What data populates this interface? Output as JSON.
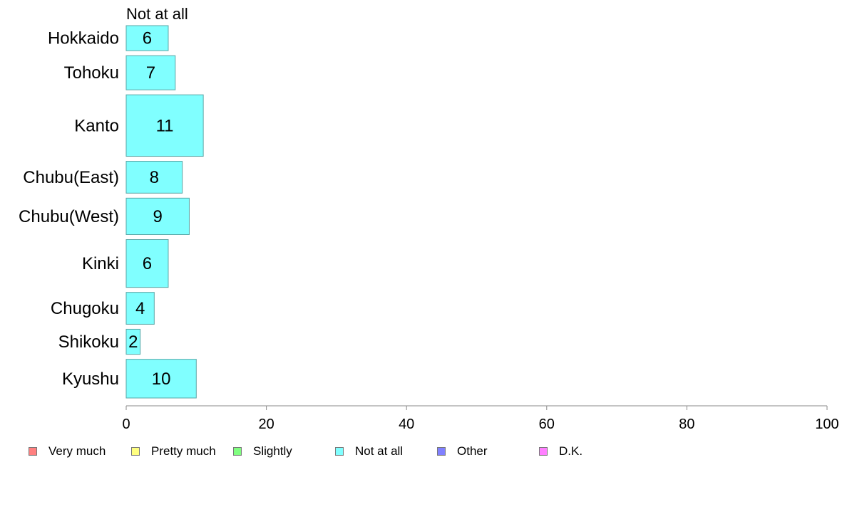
{
  "chart_data": {
    "type": "bar",
    "orientation": "horizontal",
    "panel_label": "Not at all",
    "categories": [
      "Hokkaido",
      "Tohoku",
      "Kanto",
      "Chubu(East)",
      "Chubu(West)",
      "Kinki",
      "Chugoku",
      "Shikoku",
      "Kyushu"
    ],
    "values": [
      6,
      7,
      11,
      8,
      9,
      6,
      4,
      2,
      10
    ],
    "value_labels": [
      "6",
      "7",
      "11",
      "8",
      "9",
      "6",
      "4",
      "2",
      "10"
    ],
    "relative_heights": [
      5.5,
      7.5,
      13.5,
      7.0,
      8.0,
      10.5,
      7.0,
      5.5,
      8.5
    ],
    "xlim": [
      0,
      100
    ],
    "xticks": [
      0,
      20,
      40,
      60,
      80,
      100
    ],
    "xtick_labels": [
      "0",
      "20",
      "40",
      "60",
      "80",
      "100"
    ],
    "bar_color": "#80ffff",
    "bar_edge_color": "#5aa6a6",
    "legend_placement": "bottom",
    "legend": [
      {
        "label": "Very much",
        "color": "#ff8080"
      },
      {
        "label": "Pretty much",
        "color": "#ffff80"
      },
      {
        "label": "Slightly",
        "color": "#80ff80"
      },
      {
        "label": "Not at all",
        "color": "#80ffff"
      },
      {
        "label": "Other",
        "color": "#8080ff"
      },
      {
        "label": "D.K.",
        "color": "#ff80ff"
      }
    ]
  }
}
